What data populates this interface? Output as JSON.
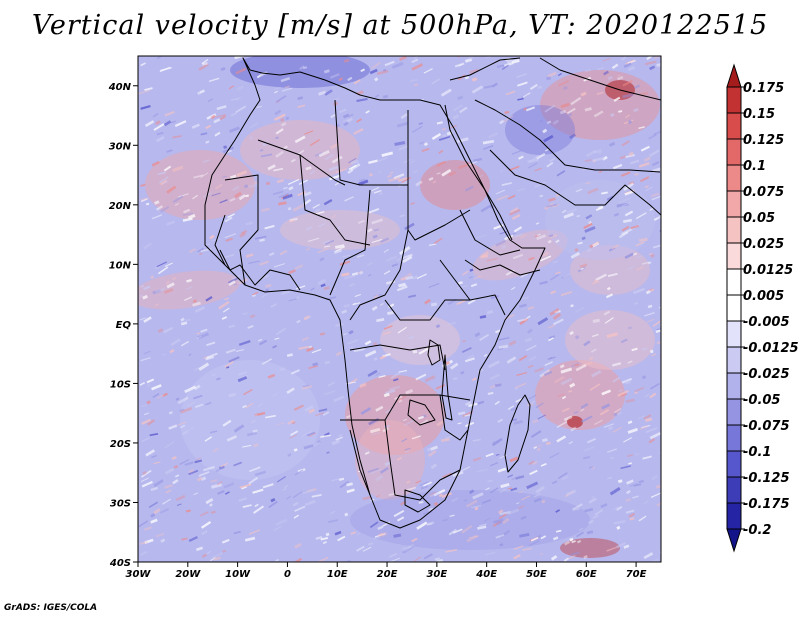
{
  "title": "Vertical velocity [m/s] at 500hPa, VT: 2020122515",
  "credit": "GrADS: IGES/COLA",
  "map": {
    "lon_range": [
      -30,
      75
    ],
    "lat_range": [
      -40,
      45
    ],
    "x_ticks": [
      "30W",
      "20W",
      "10W",
      "0",
      "10E",
      "20E",
      "30E",
      "40E",
      "50E",
      "60E",
      "70E"
    ],
    "y_ticks": [
      "40N",
      "30N",
      "20N",
      "10N",
      "EQ",
      "10S",
      "20S",
      "30S",
      "40S"
    ],
    "background_color": "#b7b8ee"
  },
  "colorbar": {
    "levels": [
      "0.175",
      "0.15",
      "0.125",
      "0.1",
      "0.075",
      "0.05",
      "0.025",
      "0.0125",
      "0.005",
      "-0.005",
      "-0.0125",
      "-0.025",
      "-0.05",
      "-0.075",
      "-0.1",
      "-0.125",
      "-0.175",
      "-0.2"
    ],
    "colors": [
      "#a41c1c",
      "#c33232",
      "#d84c4c",
      "#e36868",
      "#ec8a8a",
      "#f2a8a8",
      "#f6c3c3",
      "#fadada",
      "#ffffff",
      "#ffffff",
      "#e2e2fa",
      "#cacaf2",
      "#b1b1ec",
      "#9494e3",
      "#7777da",
      "#5757cd",
      "#3d3db8",
      "#2424a4",
      "#13138a"
    ]
  },
  "chart_data": {
    "type": "heatmap",
    "title": "Vertical velocity [m/s] at 500hPa, VT: 2020122515",
    "variable": "vertical velocity",
    "units": "m/s",
    "level": "500hPa",
    "valid_time": "2020122515",
    "xlim": [
      -30,
      75
    ],
    "ylim": [
      -40,
      45
    ],
    "contour_levels": [
      -0.2,
      -0.175,
      -0.125,
      -0.1,
      -0.075,
      -0.05,
      -0.025,
      -0.0125,
      -0.005,
      0.005,
      0.0125,
      0.025,
      0.05,
      0.075,
      0.1,
      0.125,
      0.15,
      0.175
    ]
  }
}
